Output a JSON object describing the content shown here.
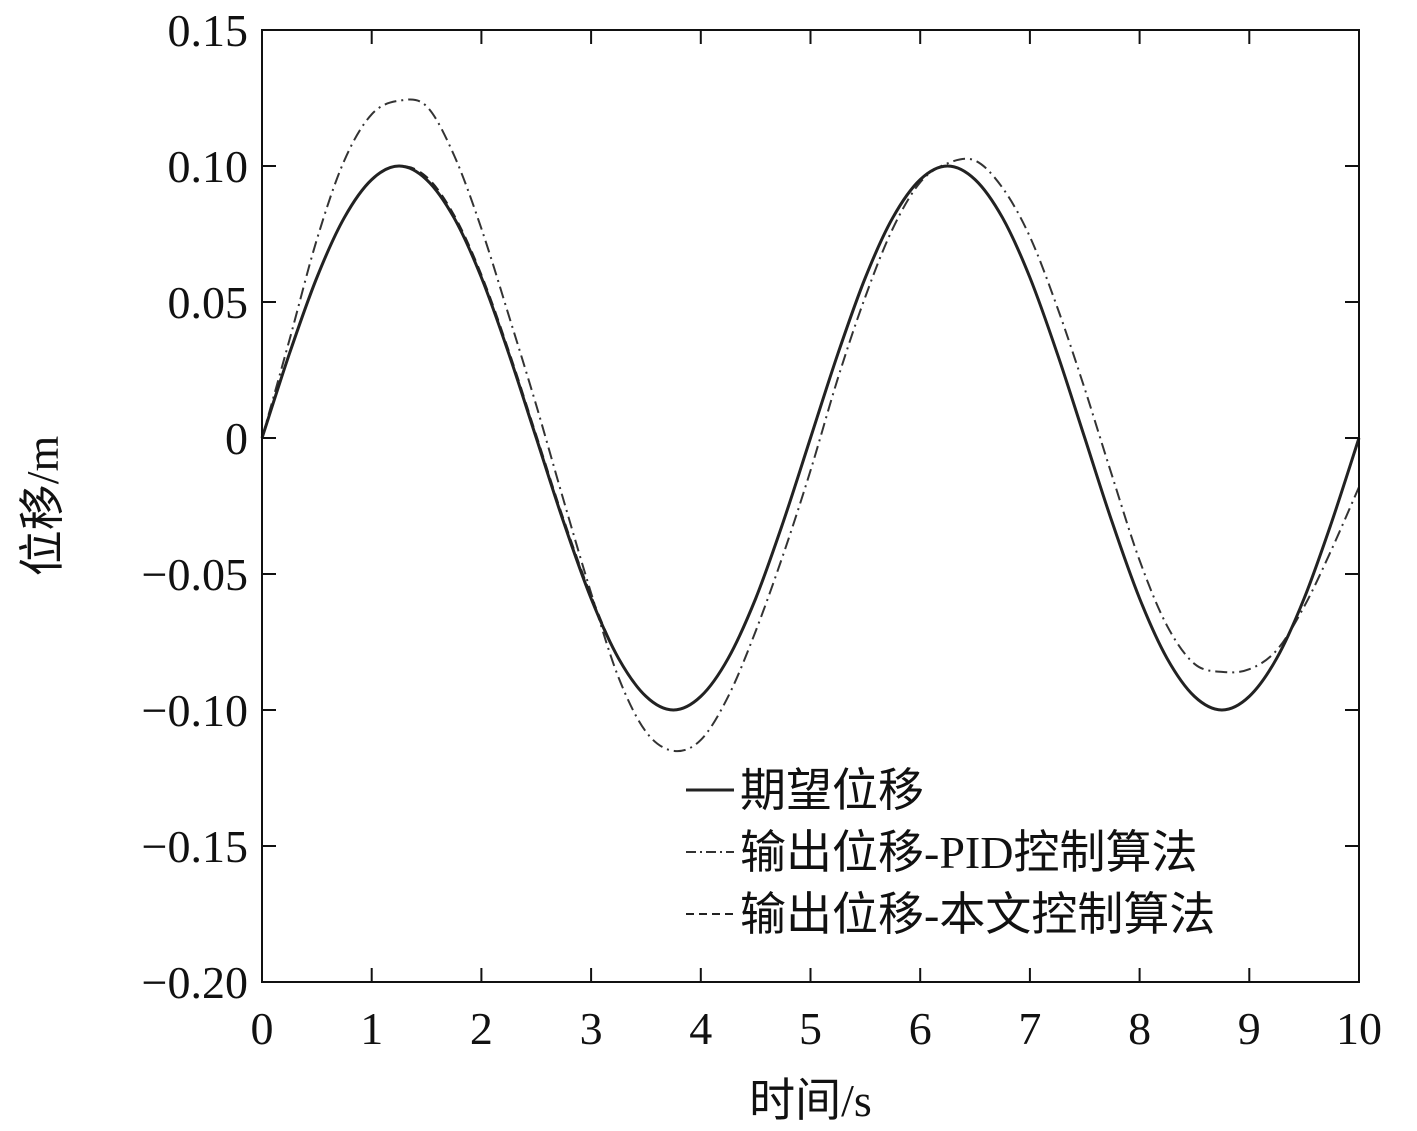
{
  "chart_data": {
    "type": "line",
    "title": "",
    "xlabel": "时间/s",
    "ylabel": "位移/m",
    "xlim": [
      0,
      10
    ],
    "ylim": [
      -0.2,
      0.15
    ],
    "x_ticks": [
      0,
      1,
      2,
      3,
      4,
      5,
      6,
      7,
      8,
      9,
      10
    ],
    "x_tick_labels": [
      "0",
      "1",
      "2",
      "3",
      "4",
      "5",
      "6",
      "7",
      "8",
      "9",
      "10"
    ],
    "y_ticks": [
      0.15,
      0.1,
      0.05,
      0,
      -0.05,
      -0.1,
      -0.15,
      -0.2
    ],
    "y_tick_labels": [
      "0.15",
      "0.10",
      "0.05",
      "0",
      "−0.05",
      "−0.10",
      "−0.15",
      "−0.20"
    ],
    "grid": false,
    "legend_position": "bottom-right",
    "series": [
      {
        "name": "期望位移",
        "style": "solid",
        "color": "#222222",
        "x": [
          0,
          0.25,
          0.5,
          0.75,
          1.0,
          1.25,
          1.5,
          1.75,
          2.0,
          2.25,
          2.5,
          2.75,
          3.0,
          3.25,
          3.5,
          3.75,
          4.0,
          4.25,
          4.5,
          4.75,
          5.0,
          5.25,
          5.5,
          5.75,
          6.0,
          6.25,
          6.5,
          6.75,
          7.0,
          7.25,
          7.5,
          7.75,
          8.0,
          8.25,
          8.5,
          8.75,
          9.0,
          9.25,
          9.5,
          9.75,
          10.0
        ],
        "y": [
          0,
          0.031,
          0.059,
          0.081,
          0.095,
          0.1,
          0.095,
          0.081,
          0.059,
          0.031,
          0,
          -0.031,
          -0.059,
          -0.081,
          -0.095,
          -0.1,
          -0.095,
          -0.081,
          -0.059,
          -0.031,
          0,
          0.031,
          0.059,
          0.081,
          0.095,
          0.1,
          0.095,
          0.081,
          0.059,
          0.031,
          0,
          -0.031,
          -0.059,
          -0.081,
          -0.095,
          -0.1,
          -0.095,
          -0.081,
          -0.059,
          -0.031,
          0
        ]
      },
      {
        "name": "输出位移-PID控制算法",
        "style": "dashdot",
        "color": "#333333",
        "x": [
          0,
          0.25,
          0.5,
          0.75,
          1.0,
          1.25,
          1.5,
          1.75,
          2.0,
          2.25,
          2.5,
          2.75,
          3.0,
          3.25,
          3.5,
          3.75,
          4.0,
          4.25,
          4.5,
          4.75,
          5.0,
          5.25,
          5.5,
          5.75,
          6.0,
          6.25,
          6.5,
          6.75,
          7.0,
          7.25,
          7.5,
          7.75,
          8.0,
          8.25,
          8.5,
          8.75,
          9.0,
          9.25,
          9.5,
          9.75,
          10.0
        ],
        "y": [
          0,
          0.036,
          0.073,
          0.102,
          0.119,
          0.124,
          0.122,
          0.104,
          0.077,
          0.045,
          0.012,
          -0.023,
          -0.057,
          -0.088,
          -0.108,
          -0.115,
          -0.111,
          -0.095,
          -0.071,
          -0.043,
          -0.012,
          0.022,
          0.052,
          0.077,
          0.094,
          0.101,
          0.102,
          0.092,
          0.074,
          0.048,
          0.018,
          -0.014,
          -0.045,
          -0.069,
          -0.083,
          -0.086,
          -0.085,
          -0.078,
          -0.062,
          -0.041,
          -0.018
        ]
      },
      {
        "name": "输出位移-本文控制算法",
        "style": "dashed",
        "color": "#222222",
        "x": [
          0,
          0.25,
          0.5,
          0.75,
          1.0,
          1.25,
          1.5,
          1.75,
          2.0,
          2.25,
          2.5,
          2.75,
          3.0,
          3.25,
          3.5,
          3.75,
          4.0,
          4.25,
          4.5,
          4.75,
          5.0,
          5.25,
          5.5,
          5.75,
          6.0,
          6.25,
          6.5,
          6.75,
          7.0,
          7.25,
          7.5,
          7.75,
          8.0,
          8.25,
          8.5,
          8.75,
          9.0,
          9.25,
          9.5,
          9.75,
          10.0
        ],
        "y": [
          0,
          0.031,
          0.059,
          0.081,
          0.095,
          0.1,
          0.096,
          0.082,
          0.06,
          0.032,
          0.001,
          -0.03,
          -0.058,
          -0.081,
          -0.095,
          -0.1,
          -0.095,
          -0.081,
          -0.059,
          -0.031,
          0,
          0.031,
          0.059,
          0.081,
          0.095,
          0.1,
          0.095,
          0.081,
          0.059,
          0.031,
          0,
          -0.031,
          -0.059,
          -0.081,
          -0.095,
          -0.1,
          -0.095,
          -0.081,
          -0.059,
          -0.031,
          0
        ]
      }
    ]
  }
}
